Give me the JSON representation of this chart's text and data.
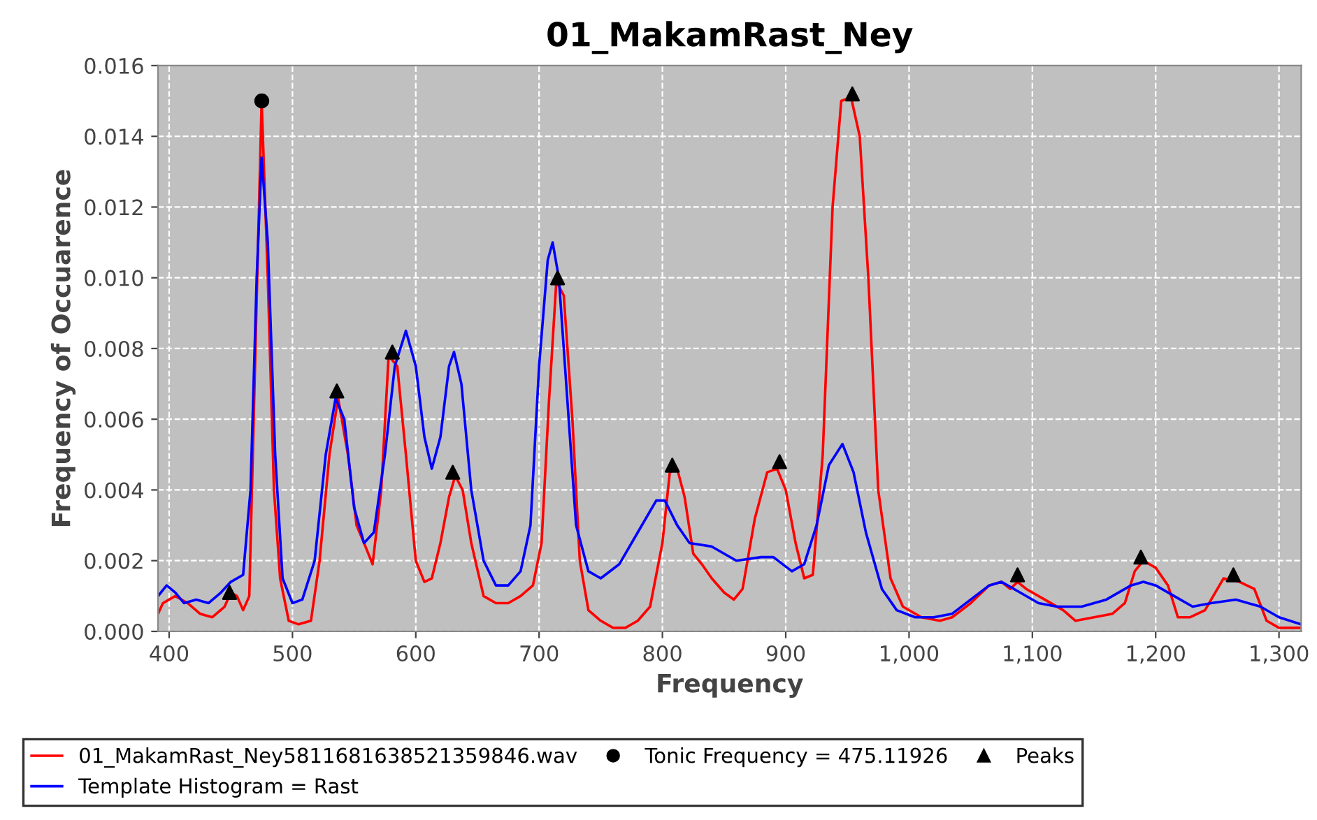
{
  "chart_data": {
    "type": "line",
    "title": "01_MakamRast_Ney",
    "xlabel": "Frequency",
    "ylabel": "Frequency of Occuarence",
    "xlim": [
      391,
      1318
    ],
    "ylim": [
      0,
      0.016
    ],
    "xticks": [
      400,
      500,
      600,
      700,
      800,
      900,
      {
        "value": 1000,
        "label": "1,000"
      },
      {
        "value": 1100,
        "label": "1,100"
      },
      {
        "value": 1200,
        "label": "1,200"
      },
      {
        "value": 1300,
        "label": "1,300"
      }
    ],
    "yticks": [
      {
        "value": 0,
        "label": "0.000"
      },
      {
        "value": 0.002,
        "label": "0.002"
      },
      {
        "value": 0.004,
        "label": "0.004"
      },
      {
        "value": 0.006,
        "label": "0.006"
      },
      {
        "value": 0.008,
        "label": "0.008"
      },
      {
        "value": 0.01,
        "label": "0.010"
      },
      {
        "value": 0.012,
        "label": "0.012"
      },
      {
        "value": 0.014,
        "label": "0.014"
      },
      {
        "value": 0.016,
        "label": "0.016"
      }
    ],
    "grid": true,
    "legend": "bottom",
    "series": [
      {
        "name": "01_MakamRast_Ney5811681638521359846.wav",
        "color": "#ff0000",
        "marker": "none",
        "x": [
          391,
          395,
          400,
          405,
          415,
          425,
          435,
          445,
          450,
          455,
          460,
          465,
          470,
          475,
          480,
          485,
          490,
          497,
          505,
          515,
          522,
          530,
          537,
          545,
          552,
          558,
          565,
          572,
          578,
          585,
          592,
          600,
          607,
          613,
          620,
          627,
          632,
          638,
          645,
          655,
          665,
          675,
          685,
          695,
          702,
          708,
          714,
          720,
          727,
          733,
          740,
          750,
          760,
          770,
          780,
          790,
          800,
          806,
          812,
          818,
          825,
          832,
          840,
          850,
          858,
          865,
          875,
          885,
          893,
          900,
          908,
          915,
          922,
          930,
          938,
          945,
          953,
          960,
          967,
          975,
          985,
          995,
          1010,
          1025,
          1035,
          1050,
          1065,
          1075,
          1082,
          1088,
          1095,
          1110,
          1125,
          1135,
          1150,
          1165,
          1175,
          1183,
          1190,
          1200,
          1210,
          1218,
          1228,
          1240,
          1255,
          1268,
          1280,
          1290,
          1300,
          1318
        ],
        "values": [
          0.0005,
          0.0008,
          0.0009,
          0.001,
          0.0008,
          0.0005,
          0.0004,
          0.0007,
          0.0011,
          0.001,
          0.0006,
          0.001,
          0.008,
          0.015,
          0.01,
          0.004,
          0.0015,
          0.0003,
          0.0002,
          0.0003,
          0.002,
          0.005,
          0.0066,
          0.005,
          0.003,
          0.0025,
          0.0019,
          0.004,
          0.0078,
          0.0075,
          0.005,
          0.002,
          0.0014,
          0.0015,
          0.0025,
          0.0038,
          0.0044,
          0.004,
          0.0025,
          0.001,
          0.0008,
          0.0008,
          0.001,
          0.0013,
          0.0025,
          0.0065,
          0.0099,
          0.0095,
          0.006,
          0.002,
          0.0006,
          0.0003,
          0.0001,
          0.0001,
          0.0003,
          0.0007,
          0.0025,
          0.0045,
          0.0046,
          0.0038,
          0.0022,
          0.0019,
          0.0015,
          0.0011,
          0.0009,
          0.0012,
          0.0032,
          0.0045,
          0.0046,
          0.004,
          0.0025,
          0.0015,
          0.0016,
          0.005,
          0.012,
          0.015,
          0.0151,
          0.014,
          0.01,
          0.004,
          0.0015,
          0.0007,
          0.0004,
          0.0003,
          0.0004,
          0.0008,
          0.0013,
          0.0014,
          0.0012,
          0.0014,
          0.0012,
          0.0009,
          0.0006,
          0.0003,
          0.0004,
          0.0005,
          0.0008,
          0.0017,
          0.002,
          0.0018,
          0.0013,
          0.0004,
          0.0004,
          0.0006,
          0.0015,
          0.0014,
          0.0012,
          0.0003,
          0.0001,
          0.0001
        ]
      },
      {
        "name": "Template Histogram = Rast",
        "color": "#0000ff",
        "marker": "none",
        "x": [
          391,
          398,
          405,
          412,
          422,
          432,
          442,
          450,
          460,
          466,
          471,
          475,
          480,
          486,
          492,
          500,
          508,
          518,
          527,
          535,
          542,
          550,
          558,
          566,
          575,
          583,
          592,
          600,
          607,
          613,
          620,
          627,
          631,
          637,
          645,
          655,
          665,
          675,
          685,
          693,
          700,
          707,
          711,
          716,
          722,
          730,
          740,
          750,
          765,
          780,
          795,
          802,
          812,
          822,
          840,
          860,
          880,
          890,
          905,
          915,
          925,
          935,
          946,
          955,
          965,
          978,
          990,
          1005,
          1020,
          1035,
          1050,
          1065,
          1075,
          1090,
          1105,
          1120,
          1140,
          1160,
          1180,
          1190,
          1200,
          1215,
          1230,
          1245,
          1265,
          1285,
          1300,
          1318
        ],
        "values": [
          0.001,
          0.0013,
          0.0011,
          0.0008,
          0.0009,
          0.0008,
          0.0011,
          0.0014,
          0.0016,
          0.004,
          0.01,
          0.0134,
          0.011,
          0.005,
          0.0015,
          0.0008,
          0.0009,
          0.002,
          0.005,
          0.0066,
          0.006,
          0.0035,
          0.0025,
          0.0028,
          0.005,
          0.0075,
          0.0085,
          0.0075,
          0.0055,
          0.0046,
          0.0055,
          0.0075,
          0.0079,
          0.007,
          0.004,
          0.002,
          0.0013,
          0.0013,
          0.0017,
          0.003,
          0.0075,
          0.0105,
          0.011,
          0.01,
          0.007,
          0.003,
          0.0017,
          0.0015,
          0.0019,
          0.0028,
          0.0037,
          0.0037,
          0.003,
          0.0025,
          0.0024,
          0.002,
          0.0021,
          0.0021,
          0.0017,
          0.0019,
          0.003,
          0.0047,
          0.0053,
          0.0045,
          0.0028,
          0.0012,
          0.0006,
          0.0004,
          0.0004,
          0.0005,
          0.0009,
          0.0013,
          0.0014,
          0.0011,
          0.0008,
          0.0007,
          0.0007,
          0.0009,
          0.0013,
          0.0014,
          0.0013,
          0.001,
          0.0007,
          0.0008,
          0.0009,
          0.0007,
          0.0004,
          0.0002
        ]
      },
      {
        "name": "Tonic Frequency = 475.11926",
        "type": "scatter",
        "color": "#000000",
        "marker": "circle",
        "x": [
          475.11926
        ],
        "values": [
          0.015
        ]
      },
      {
        "name": "Peaks",
        "type": "scatter",
        "color": "#000000",
        "marker": "triangle",
        "x": [
          449,
          536,
          581,
          630,
          715,
          808,
          895,
          954,
          1088,
          1188,
          1263
        ],
        "values": [
          0.0011,
          0.0068,
          0.0079,
          0.0045,
          0.01,
          0.0047,
          0.0048,
          0.0152,
          0.0016,
          0.0021,
          0.0016
        ]
      }
    ]
  }
}
